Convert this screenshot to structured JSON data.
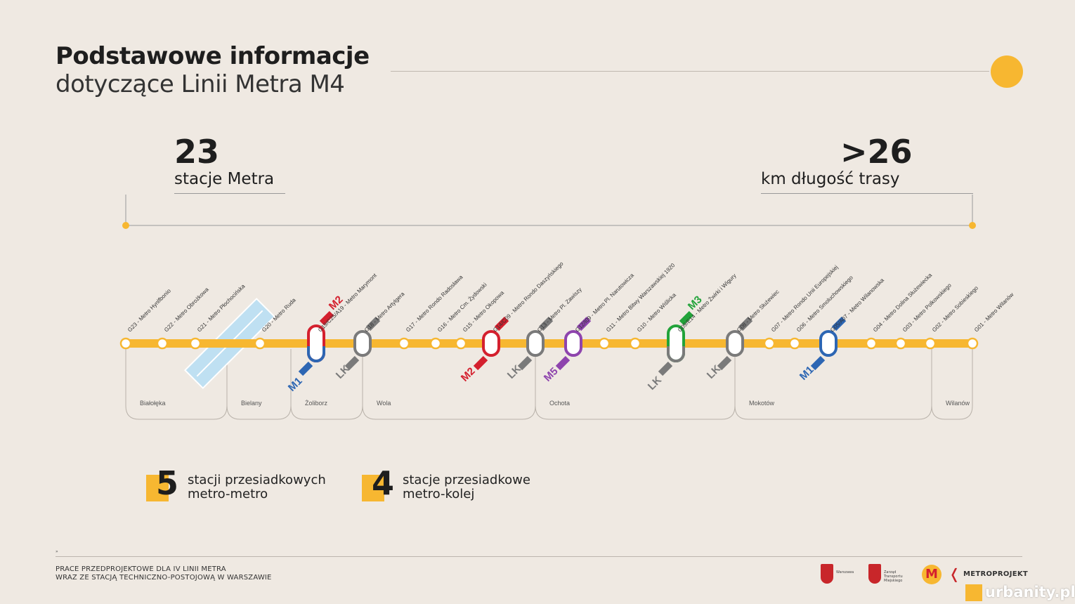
{
  "title": {
    "line1": "Podstawowe informacje",
    "line2": "dotyczące Linii Metra M4"
  },
  "stats": {
    "stations": {
      "number": "23",
      "label": "stacje Metra"
    },
    "length": {
      "number": ">26",
      "label": "km długość trasy"
    }
  },
  "colors": {
    "line": "#f7b731",
    "M1": "#2d66b3",
    "M2": "#d4202e",
    "M3": "#22a33a",
    "M5": "#8e44ad",
    "LK": "#7a7a7a",
    "background": "#efe9e2"
  },
  "stations": [
    "G23 - Metro Hynlfbonio",
    "G22 - Metro Obrożkowa",
    "G21 - Metro Płochocińska",
    "G20 - Metro Ruda",
    "G19/C25/A19 - Metro Marymont",
    "G18 - Metro Artylgera",
    "G17 - Metro Rondo Radosława",
    "G16 - Metro Cm. Żydowski",
    "G15 - Metro Okopowa",
    "G14/C09 - Metro Rondo Daszyńskiego",
    "G13 - Metro Pl. Zawiszy",
    "G12/I09 - Metro Pl. Narutowicza",
    "G11 - Metro Bitwy Warszawskiej 1920",
    "G10 - Metro Wiślicka",
    "G09/E14 - Metro Żwirki i Wigury",
    "G08 - Metro Służewiec",
    "G07 - Metro Rondo Unii Europejskiej",
    "G06 - Metro Smoluchowskiego",
    "G05/A07 - Metro Wilanowska",
    "G04 - Metro Dolina Służewiecka",
    "G03 - Metro Polkowskiego",
    "G02 - Metro Sobieskiego",
    "G01 - Metro Wilanów"
  ],
  "transfer_labels": [
    "M2",
    "LK",
    "M2",
    "LK",
    "M5",
    "M3",
    "LK",
    "LK",
    "M1",
    "M1"
  ],
  "districts": [
    "Białołęka",
    "Bielany",
    "Żoliborz",
    "Wola",
    "Ochota",
    "Mokotów",
    "Wilanów"
  ],
  "counts": [
    {
      "number": "5",
      "line1": "stacji przesiadkowych",
      "line2": "metro-metro"
    },
    {
      "number": "4",
      "line1": "stacje przesiadkowe",
      "line2": "metro-kolej"
    }
  ],
  "footer": {
    "mark": "»",
    "line1": "PRACE PRZEDPROJEKTOWE DLA IV LINII METRA",
    "line2": "WRAZ ZE STACJĄ TECHNICZNO-POSTOJOWĄ W WARSZAWIE",
    "logo1_text": "Warszawa",
    "logo2_text": "Zarząd Transportu Miejskiego",
    "logo3_text": "M",
    "logo4_text": "METROPROJEKT"
  },
  "watermark": "urbanity.pl"
}
